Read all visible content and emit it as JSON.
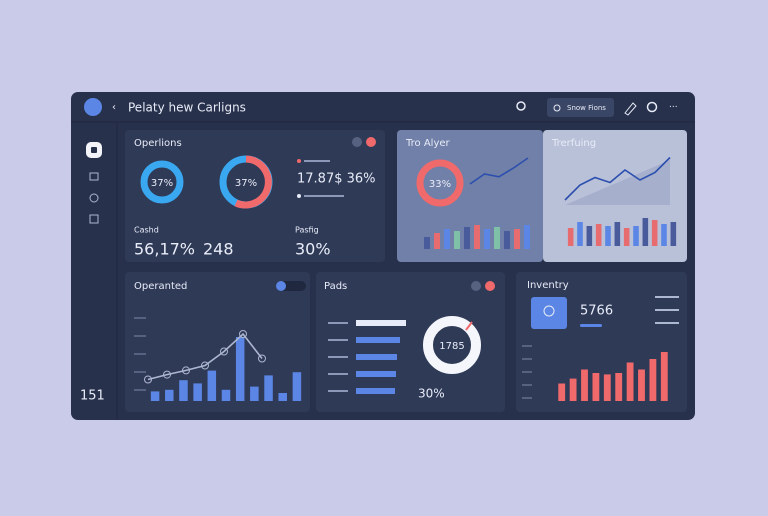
{
  "header": {
    "title": "Pelaty hew Carligns",
    "search": "Snow Fions"
  },
  "sidebar": {
    "footer": "151"
  },
  "operations": {
    "title": "Operlions",
    "donut1": "37%",
    "donut2": "37%",
    "stat": "17.87$ 36%",
    "label2": "Cashd",
    "stat2": "56,17%",
    "stat3": "248",
    "label3": "Pasfig",
    "stat4": "30%"
  },
  "analyzer": {
    "title": "Tro Alyer",
    "donut": "33%",
    "line": [
      20,
      45,
      38,
      60,
      85
    ],
    "bars": [
      30,
      40,
      50,
      45,
      55,
      60,
      50,
      55,
      45,
      50,
      60
    ]
  },
  "trending": {
    "title": "Trerfuing",
    "line": [
      10,
      40,
      55,
      45,
      70,
      50,
      65,
      95
    ],
    "bars": [
      45,
      60,
      50,
      55,
      50,
      60,
      45,
      50,
      70,
      65,
      55,
      60
    ]
  },
  "operated": {
    "title": "Operanted",
    "line": [
      15,
      22,
      28,
      35,
      55,
      80,
      45
    ],
    "bars": [
      12,
      14,
      26,
      22,
      38,
      14,
      80,
      18,
      32,
      10,
      36
    ]
  },
  "pads": {
    "title": "Pads",
    "bars": [
      100,
      88,
      82,
      80,
      78
    ],
    "donut": "1785",
    "total": "30%"
  },
  "inventory": {
    "title": "Inventry",
    "value": "5766",
    "bars": [
      25,
      32,
      45,
      40,
      38,
      40,
      55,
      45,
      60,
      70
    ]
  }
}
